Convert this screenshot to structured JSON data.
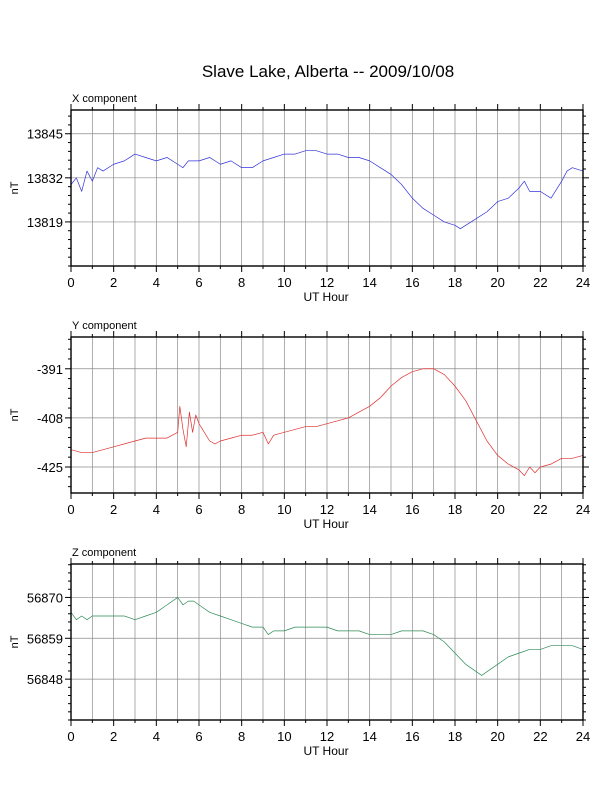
{
  "page_title": "Slave Lake, Alberta -- 2009/10/08",
  "chart_data": [
    {
      "type": "line",
      "panel_title": "X component",
      "xlabel": "UT Hour",
      "ylabel": "nT",
      "xlim": [
        0,
        24
      ],
      "ylim": [
        13806,
        13852
      ],
      "x_ticks": [
        0,
        2,
        4,
        6,
        8,
        10,
        12,
        14,
        16,
        18,
        20,
        22,
        24
      ],
      "y_ticks": [
        13819,
        13832,
        13845
      ],
      "color": "#3333dd",
      "series": [
        {
          "name": "",
          "x": [
            0,
            0.25,
            0.5,
            0.75,
            1,
            1.25,
            1.5,
            2,
            2.5,
            3,
            3.5,
            4,
            4.5,
            5,
            5.25,
            5.5,
            6,
            6.5,
            7,
            7.5,
            8,
            8.5,
            9,
            9.5,
            10,
            10.5,
            11,
            11.5,
            12,
            12.5,
            13,
            13.5,
            14,
            14.5,
            15,
            15.5,
            16,
            16.5,
            17,
            17.5,
            18,
            18.25,
            18.5,
            19,
            19.5,
            20,
            20.5,
            21,
            21.25,
            21.5,
            22,
            22.5,
            23,
            23.25,
            23.5,
            24
          ],
          "values": [
            13830,
            13832,
            13828,
            13834,
            13831,
            13835,
            13834,
            13836,
            13837,
            13839,
            13838,
            13837,
            13838,
            13836,
            13835,
            13837,
            13837,
            13838,
            13836,
            13837,
            13835,
            13835,
            13837,
            13838,
            13839,
            13839,
            13840,
            13840,
            13839,
            13839,
            13838,
            13838,
            13837,
            13835,
            13833,
            13830,
            13826,
            13823,
            13821,
            13819,
            13818,
            13817,
            13818,
            13820,
            13822,
            13825,
            13826,
            13829,
            13831,
            13828,
            13828,
            13826,
            13831,
            13834,
            13835,
            13834
          ]
        }
      ]
    },
    {
      "type": "line",
      "panel_title": "Y component",
      "xlabel": "UT Hour",
      "ylabel": "nT",
      "xlim": [
        0,
        24
      ],
      "ylim": [
        -434,
        -380
      ],
      "x_ticks": [
        0,
        2,
        4,
        6,
        8,
        10,
        12,
        14,
        16,
        18,
        20,
        22,
        24
      ],
      "y_ticks": [
        -425,
        -408,
        -391
      ],
      "color": "#e03030",
      "series": [
        {
          "name": "",
          "x": [
            0,
            0.5,
            1,
            1.5,
            2,
            2.5,
            3,
            3.5,
            4,
            4.5,
            5,
            5.1,
            5.25,
            5.4,
            5.55,
            5.7,
            5.85,
            6,
            6.25,
            6.5,
            6.75,
            7,
            7.5,
            8,
            8.5,
            9,
            9.25,
            9.5,
            10,
            10.5,
            11,
            11.5,
            12,
            12.5,
            13,
            13.5,
            14,
            14.5,
            15,
            15.5,
            16,
            16.5,
            17,
            17.5,
            18,
            18.5,
            19,
            19.5,
            20,
            20.5,
            21,
            21.25,
            21.5,
            21.75,
            22,
            22.5,
            23,
            23.5,
            24
          ],
          "values": [
            -419,
            -420,
            -420,
            -419,
            -418,
            -417,
            -416,
            -415,
            -415,
            -415,
            -413,
            -404,
            -412,
            -418,
            -406,
            -413,
            -407,
            -410,
            -413,
            -416,
            -417,
            -416,
            -415,
            -414,
            -414,
            -413,
            -417,
            -414,
            -413,
            -412,
            -411,
            -411,
            -410,
            -409,
            -408,
            -406,
            -404,
            -401,
            -397,
            -394,
            -392,
            -391,
            -391,
            -393,
            -397,
            -402,
            -409,
            -416,
            -421,
            -424,
            -426,
            -428,
            -425,
            -427,
            -425,
            -424,
            -422,
            -422,
            -421
          ]
        }
      ]
    },
    {
      "type": "line",
      "panel_title": "Z component",
      "xlabel": "UT Hour",
      "ylabel": "nT",
      "xlim": [
        0,
        24
      ],
      "ylim": [
        56837,
        56879
      ],
      "x_ticks": [
        0,
        2,
        4,
        6,
        8,
        10,
        12,
        14,
        16,
        18,
        20,
        22,
        24
      ],
      "y_ticks": [
        56848,
        56859,
        56870
      ],
      "color": "#2e8b57",
      "series": [
        {
          "name": "",
          "x": [
            0,
            0.25,
            0.5,
            0.75,
            1,
            1.5,
            2,
            2.5,
            3,
            3.5,
            4,
            4.5,
            5,
            5.25,
            5.5,
            5.75,
            6,
            6.5,
            7,
            7.5,
            8,
            8.5,
            9,
            9.25,
            9.5,
            10,
            10.5,
            11,
            11.5,
            12,
            12.5,
            13,
            13.5,
            14,
            14.5,
            15,
            15.5,
            16,
            16.5,
            17,
            17.5,
            18,
            18.5,
            19,
            19.25,
            19.5,
            20,
            20.5,
            21,
            21.5,
            22,
            22.5,
            23,
            23.5,
            24
          ],
          "values": [
            56866,
            56864,
            56865,
            56864,
            56865,
            56865,
            56865,
            56865,
            56864,
            56865,
            56866,
            56868,
            56870,
            56868,
            56869,
            56869,
            56868,
            56866,
            56865,
            56864,
            56863,
            56862,
            56862,
            56860,
            56861,
            56861,
            56862,
            56862,
            56862,
            56862,
            56861,
            56861,
            56861,
            56860,
            56860,
            56860,
            56861,
            56861,
            56861,
            56860,
            56858,
            56855,
            56852,
            56850,
            56849,
            56850,
            56852,
            56854,
            56855,
            56856,
            56856,
            56857,
            56857,
            56857,
            56856
          ]
        }
      ]
    }
  ]
}
